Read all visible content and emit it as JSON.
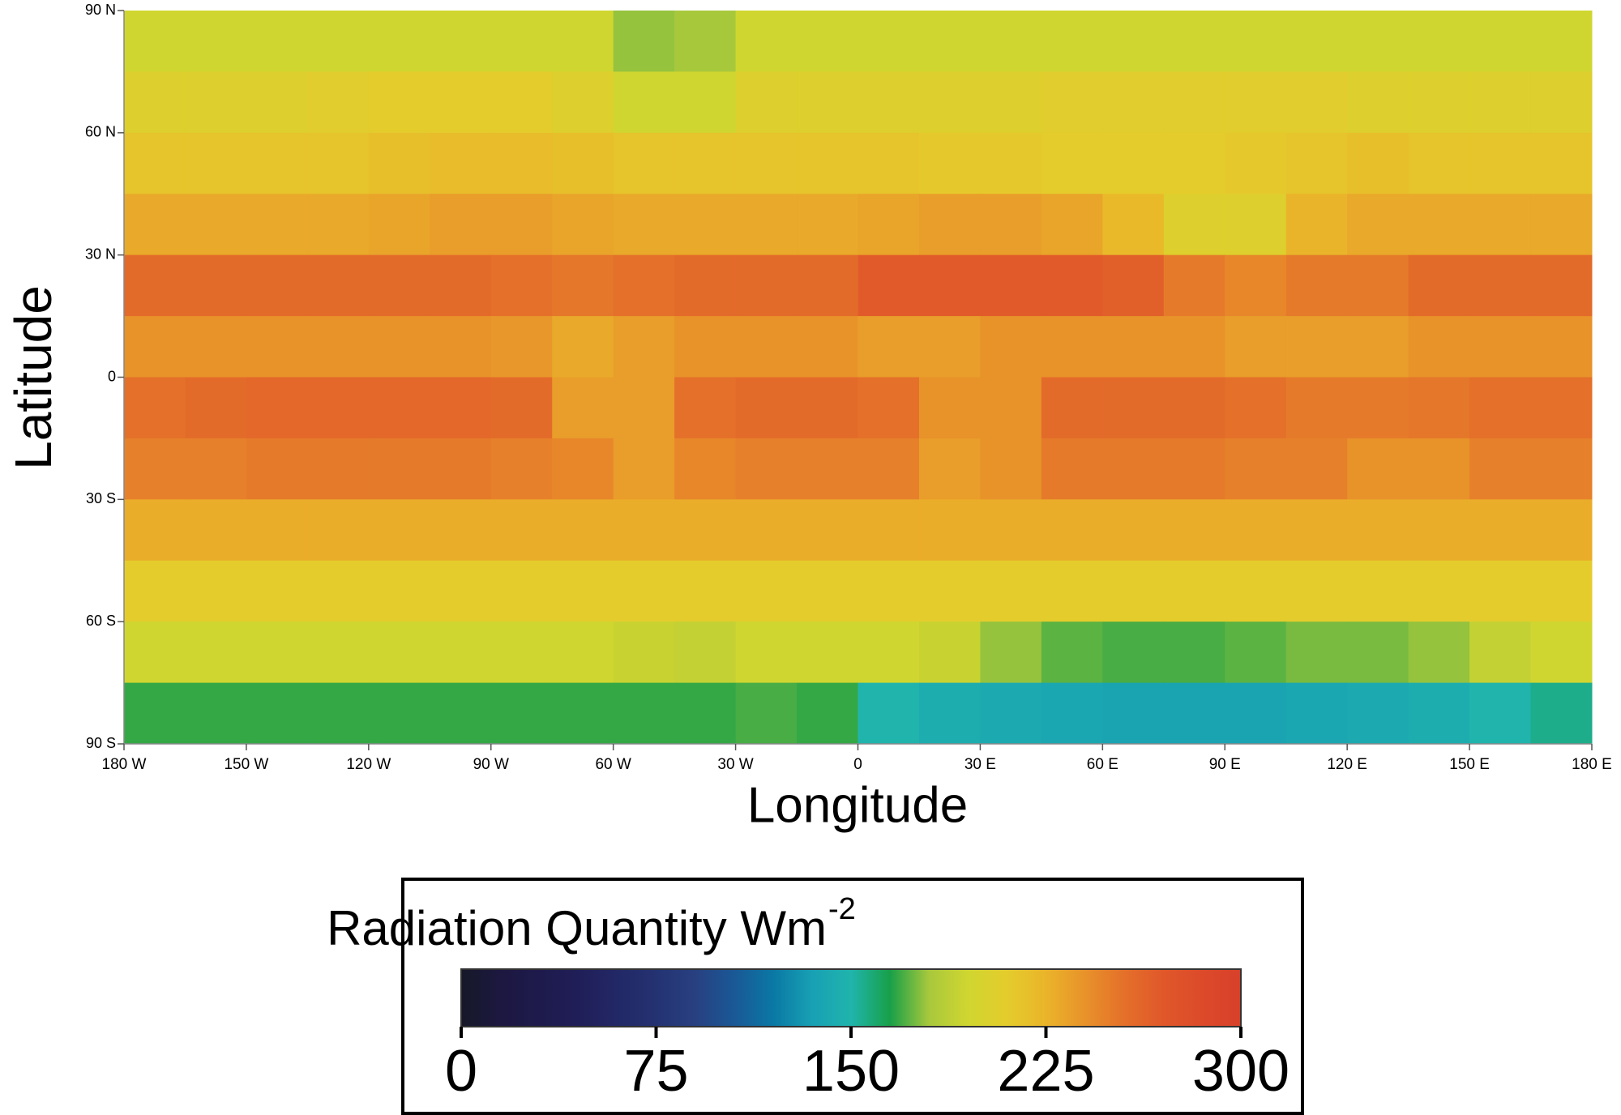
{
  "chart_data": {
    "type": "heatmap",
    "x_label": "Longitude",
    "y_label": "Latitude",
    "xlim": [
      -180,
      180
    ],
    "ylim": [
      -90,
      90
    ],
    "xticks": [
      {
        "value": -180,
        "label": "180 W"
      },
      {
        "value": -150,
        "label": "150 W"
      },
      {
        "value": -120,
        "label": "120 W"
      },
      {
        "value": -90,
        "label": "90 W"
      },
      {
        "value": -60,
        "label": "60 W"
      },
      {
        "value": -30,
        "label": "30 W"
      },
      0,
      {
        "value": 30,
        "label": "30 E"
      },
      {
        "value": 60,
        "label": "60 E"
      },
      {
        "value": 90,
        "label": "90 E"
      },
      {
        "value": 120,
        "label": "120 E"
      },
      {
        "value": 150,
        "label": "150 E"
      },
      {
        "value": 180,
        "label": "180 E"
      }
    ],
    "yticks": [
      {
        "value": 90,
        "label": "90 N"
      },
      {
        "value": 60,
        "label": "60 N"
      },
      {
        "value": 30,
        "label": "30 N"
      },
      0,
      {
        "value": -30,
        "label": "30 S"
      },
      {
        "value": -60,
        "label": "60 S"
      },
      {
        "value": -90,
        "label": "90 S"
      }
    ],
    "values": [
      [
        195,
        195,
        195,
        195,
        195,
        195,
        195,
        195,
        178,
        180,
        195,
        195,
        195,
        195,
        195,
        195,
        195,
        195,
        195,
        195,
        195,
        195,
        195,
        195
      ],
      [
        205,
        205,
        205,
        208,
        210,
        210,
        210,
        205,
        195,
        195,
        205,
        205,
        205,
        205,
        205,
        208,
        208,
        208,
        208,
        208,
        205,
        205,
        205,
        205
      ],
      [
        215,
        215,
        215,
        215,
        218,
        220,
        220,
        218,
        215,
        215,
        215,
        215,
        215,
        212,
        212,
        210,
        210,
        210,
        212,
        215,
        218,
        215,
        215,
        215
      ],
      [
        230,
        230,
        230,
        230,
        232,
        235,
        235,
        232,
        230,
        230,
        230,
        230,
        232,
        235,
        235,
        232,
        222,
        205,
        205,
        225,
        230,
        230,
        230,
        230
      ],
      [
        258,
        258,
        258,
        258,
        258,
        258,
        255,
        252,
        255,
        258,
        258,
        258,
        268,
        268,
        268,
        268,
        265,
        250,
        245,
        250,
        250,
        258,
        258,
        258
      ],
      [
        240,
        240,
        240,
        240,
        240,
        240,
        238,
        230,
        235,
        240,
        240,
        240,
        235,
        235,
        240,
        240,
        240,
        240,
        235,
        235,
        235,
        240,
        240,
        240
      ],
      [
        255,
        258,
        260,
        260,
        260,
        260,
        258,
        235,
        235,
        255,
        258,
        258,
        255,
        240,
        240,
        258,
        258,
        258,
        255,
        250,
        250,
        252,
        255,
        255
      ],
      [
        248,
        248,
        250,
        250,
        250,
        250,
        248,
        245,
        235,
        245,
        248,
        248,
        248,
        235,
        240,
        250,
        250,
        250,
        248,
        248,
        240,
        240,
        248,
        248
      ],
      [
        228,
        228,
        228,
        228,
        228,
        228,
        228,
        228,
        228,
        228,
        228,
        228,
        228,
        228,
        228,
        228,
        228,
        228,
        228,
        228,
        228,
        228,
        228,
        228
      ],
      [
        210,
        210,
        210,
        210,
        210,
        210,
        210,
        210,
        210,
        210,
        210,
        210,
        210,
        210,
        210,
        210,
        210,
        210,
        210,
        210,
        210,
        210,
        210,
        210
      ],
      [
        195,
        195,
        195,
        195,
        195,
        195,
        195,
        195,
        192,
        190,
        195,
        195,
        195,
        192,
        178,
        172,
        170,
        170,
        172,
        175,
        175,
        178,
        190,
        195
      ],
      [
        168,
        168,
        168,
        168,
        168,
        168,
        168,
        168,
        168,
        168,
        170,
        168,
        150,
        145,
        142,
        140,
        138,
        138,
        138,
        140,
        142,
        145,
        150,
        155
      ]
    ],
    "colorbar": {
      "label": "Radiation Quantity Wm",
      "label_exponent": "-2",
      "range": [
        0,
        300
      ],
      "ticks": [
        0,
        75,
        150,
        225,
        300
      ],
      "colormap": [
        "#161828",
        "#1c1840",
        "#1e1a4c",
        "#201e58",
        "#222866",
        "#243272",
        "#284080",
        "#1a5896",
        "#0a78a4",
        "#18a0b4",
        "#20b4ac",
        "#18a048",
        "#a8c83c",
        "#d0d630",
        "#e4cc2c",
        "#eab42a",
        "#e8922a",
        "#e4702a",
        "#e0582a",
        "#dc4a2a",
        "#d8402a"
      ]
    }
  }
}
